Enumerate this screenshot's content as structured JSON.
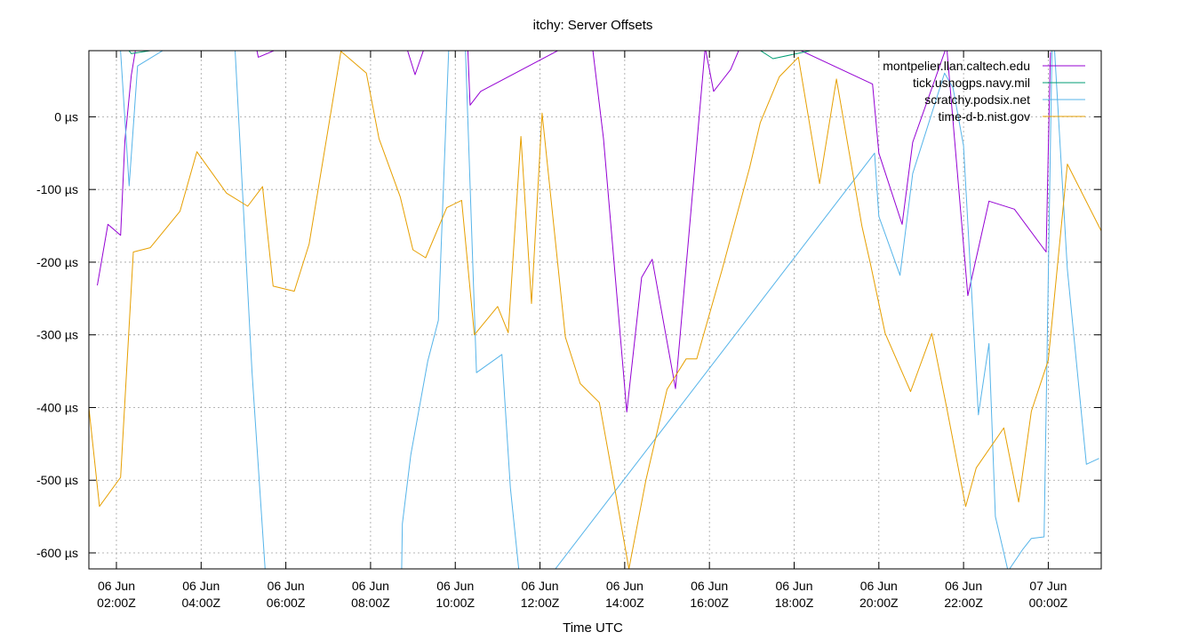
{
  "chart_data": {
    "type": "line",
    "title": "itchy: Server Offsets",
    "xlabel": "Time UTC",
    "ylabel": "",
    "x_unit": "hours since 06 Jun 00:00Z",
    "xlim": [
      1.35,
      25.25
    ],
    "ylim": [
      -622,
      91
    ],
    "grid": true,
    "legend_position": "top-right",
    "y_ticks": [
      {
        "value": 0,
        "label": "0 µs"
      },
      {
        "value": -100,
        "label": "-100 µs"
      },
      {
        "value": -200,
        "label": "-200 µs"
      },
      {
        "value": -300,
        "label": "-300 µs"
      },
      {
        "value": -400,
        "label": "-400 µs"
      },
      {
        "value": -500,
        "label": "-500 µs"
      },
      {
        "value": -600,
        "label": "-600 µs"
      }
    ],
    "x_ticks": [
      {
        "value": 2,
        "line1": "06 Jun",
        "line2": "02:00Z"
      },
      {
        "value": 4,
        "line1": "06 Jun",
        "line2": "04:00Z"
      },
      {
        "value": 6,
        "line1": "06 Jun",
        "line2": "06:00Z"
      },
      {
        "value": 8,
        "line1": "06 Jun",
        "line2": "08:00Z"
      },
      {
        "value": 10,
        "line1": "06 Jun",
        "line2": "10:00Z"
      },
      {
        "value": 12,
        "line1": "06 Jun",
        "line2": "12:00Z"
      },
      {
        "value": 14,
        "line1": "06 Jun",
        "line2": "14:00Z"
      },
      {
        "value": 16,
        "line1": "06 Jun",
        "line2": "16:00Z"
      },
      {
        "value": 18,
        "line1": "06 Jun",
        "line2": "18:00Z"
      },
      {
        "value": 20,
        "line1": "06 Jun",
        "line2": "20:00Z"
      },
      {
        "value": 22,
        "line1": "06 Jun",
        "line2": "22:00Z"
      },
      {
        "value": 24,
        "line1": "07 Jun",
        "line2": "00:00Z"
      }
    ],
    "series": [
      {
        "name": "montpelier.llan.caltech.edu",
        "color": "#9400d3",
        "x": [
          1.55,
          1.8,
          2.1,
          2.2,
          2.35,
          2.55,
          4.9,
          5.35,
          6.25,
          6.6,
          7.9,
          8.75,
          9.05,
          9.3,
          9.95,
          10.25,
          10.35,
          10.6,
          13.2,
          13.5,
          14.05,
          14.4,
          14.65,
          15.2,
          15.9,
          16.1,
          16.3,
          16.5,
          16.85,
          17.1,
          19.85,
          20.0,
          20.55,
          20.8,
          21.6,
          22.1,
          22.6,
          23.2,
          23.95,
          24.05
        ],
        "y": [
          -232,
          -148,
          -163,
          -33,
          57,
          127,
          210,
          82,
          104,
          144,
          145,
          114,
          58,
          100,
          110,
          160,
          16,
          35,
          115,
          -30,
          -406,
          -221,
          -196,
          -374,
          95,
          35,
          50,
          65,
          113,
          120,
          45,
          -50,
          -148,
          -35,
          97,
          -246,
          -116,
          -127,
          -186,
          89
        ]
      },
      {
        "name": "tick.usnogps.navy.mil",
        "color": "#009e73",
        "x": [
          2.05,
          2.2,
          2.35,
          9.4,
          10.8,
          17.1,
          17.5,
          23.95,
          24.1
        ],
        "y": [
          160,
          98,
          87,
          150,
          130,
          95,
          80,
          160,
          110
        ]
      },
      {
        "name": "scratchy.podsix.net",
        "color": "#56b4e9",
        "x": [
          2.0,
          2.3,
          2.5,
          4.75,
          5.2,
          5.6,
          8.7,
          8.75,
          8.95,
          9.35,
          9.6,
          9.8,
          10.05,
          10.2,
          10.5,
          11.1,
          11.3,
          11.6,
          19.9,
          20.0,
          20.5,
          20.8,
          21.55,
          21.75,
          22.0,
          22.35,
          22.6,
          22.75,
          23.05,
          23.4,
          23.6,
          23.9,
          24.1,
          24.45,
          24.9,
          25.2
        ],
        "y": [
          180,
          -95,
          70,
          150,
          -350,
          -700,
          -750,
          -560,
          -465,
          -336,
          -280,
          25,
          400,
          160,
          -352,
          -327,
          -510,
          -680,
          -50,
          -137,
          -218,
          -78,
          60,
          40,
          -40,
          -410,
          -312,
          -550,
          -625,
          -595,
          -580,
          -578,
          140,
          -210,
          -478,
          -470
        ]
      },
      {
        "name": "time-d-b.nist.gov",
        "color": "#e69f00",
        "x": [
          1.35,
          1.6,
          2.1,
          2.4,
          2.8,
          3.5,
          3.9,
          4.6,
          5.1,
          5.45,
          5.7,
          6.2,
          6.55,
          7.3,
          7.9,
          8.2,
          8.7,
          9.0,
          9.3,
          9.8,
          10.15,
          10.45,
          11.0,
          11.25,
          11.55,
          11.8,
          12.05,
          12.6,
          12.95,
          13.4,
          13.7,
          14.1,
          14.5,
          15.0,
          15.45,
          15.7,
          16.3,
          16.95,
          17.2,
          17.65,
          18.1,
          18.6,
          19.0,
          19.6,
          19.8,
          20.15,
          20.75,
          21.25,
          21.6,
          22.05,
          22.3,
          22.95,
          23.3,
          23.6,
          24.0,
          24.45,
          25.25
        ],
        "y": [
          -400,
          -536,
          -496,
          -186,
          -180,
          -130,
          -48,
          -105,
          -123,
          -96,
          -233,
          -240,
          -175,
          90,
          60,
          -30,
          -110,
          -183,
          -194,
          -125,
          -115,
          -300,
          -261,
          -297,
          -27,
          -257,
          5,
          -303,
          -367,
          -393,
          -490,
          -622,
          -500,
          -375,
          -333,
          -333,
          -210,
          -70,
          -8,
          55,
          82,
          -92,
          52,
          -150,
          -202,
          -298,
          -378,
          -298,
          -400,
          -536,
          -483,
          -428,
          -530,
          -405,
          -335,
          -65,
          -157
        ]
      }
    ]
  }
}
